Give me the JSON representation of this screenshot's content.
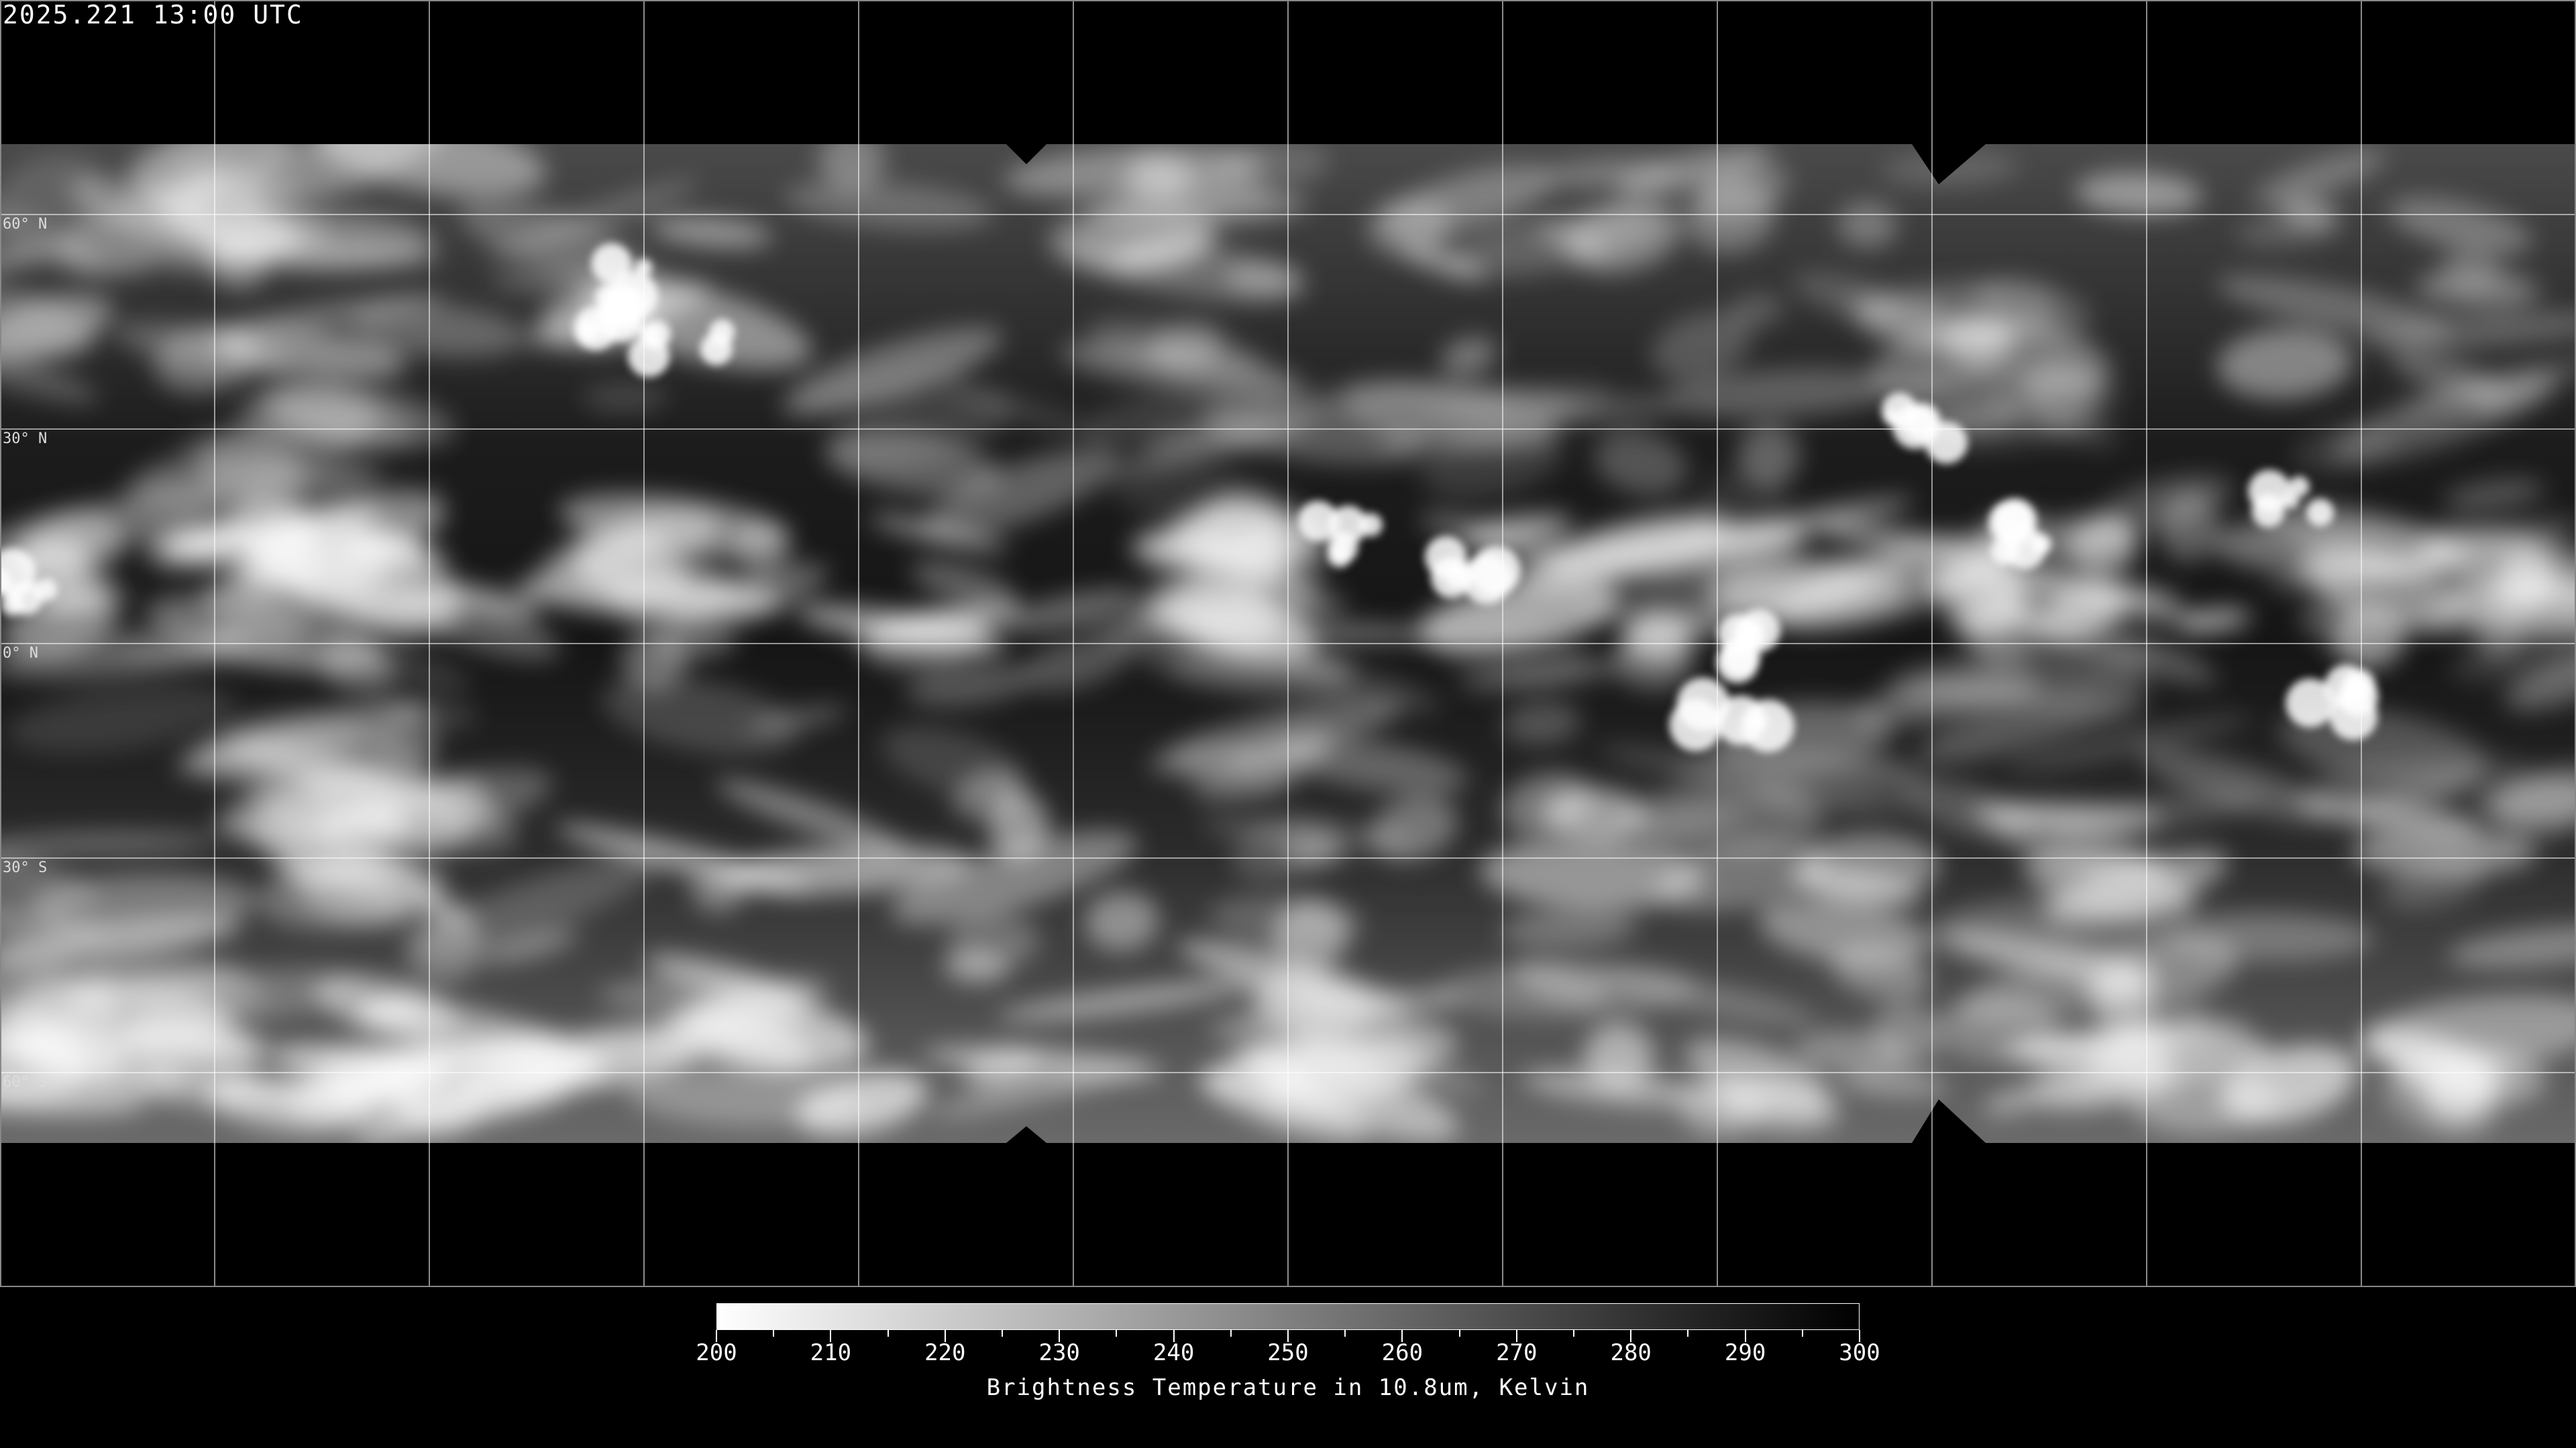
{
  "header": {
    "timestamp": "2025.221 13:00 UTC"
  },
  "map": {
    "projection": "equirectangular",
    "gridline_spacing_degrees": 30,
    "latitude_labels": [
      "60° N",
      "30° N",
      "0° N",
      "30° S",
      "60° S"
    ],
    "coastline_color": "#ffffff",
    "grid_color": "#ffffff"
  },
  "colorbar": {
    "min": 200,
    "max": 300,
    "tick_labels": [
      "200",
      "210",
      "220",
      "230",
      "240",
      "250",
      "260",
      "270",
      "280",
      "290",
      "300"
    ],
    "color_low": "#ffffff",
    "color_high": "#000000",
    "caption": "Brightness Temperature in 10.8um, Kelvin"
  }
}
